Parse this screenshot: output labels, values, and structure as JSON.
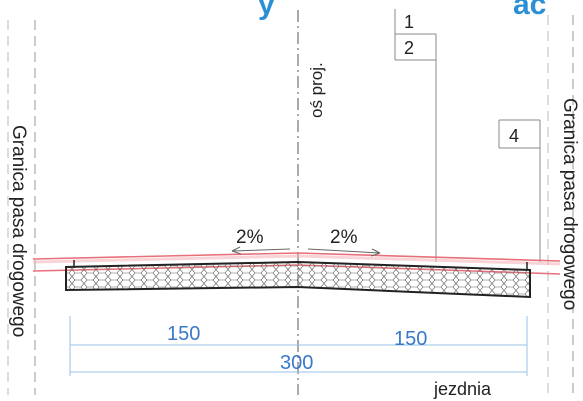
{
  "header_fragment_left": "y",
  "header_fragment_right": "ac",
  "callouts": [
    "1",
    "2",
    "4"
  ],
  "axis_label": "oś proj.",
  "boundary_label_left": "Granica pasa drogowego",
  "boundary_label_right": "Granica pasa drogowego",
  "slopes": {
    "left": "2%",
    "right": "2%"
  },
  "dimensions": {
    "left": "150",
    "right": "150",
    "total": "300"
  },
  "carriageway_label": "jezdnia",
  "colors": {
    "header_blue": "#2b8fd6",
    "dimension_blue": "#3a78c8",
    "boundary_red": "#e8707a",
    "ink": "#222222"
  }
}
